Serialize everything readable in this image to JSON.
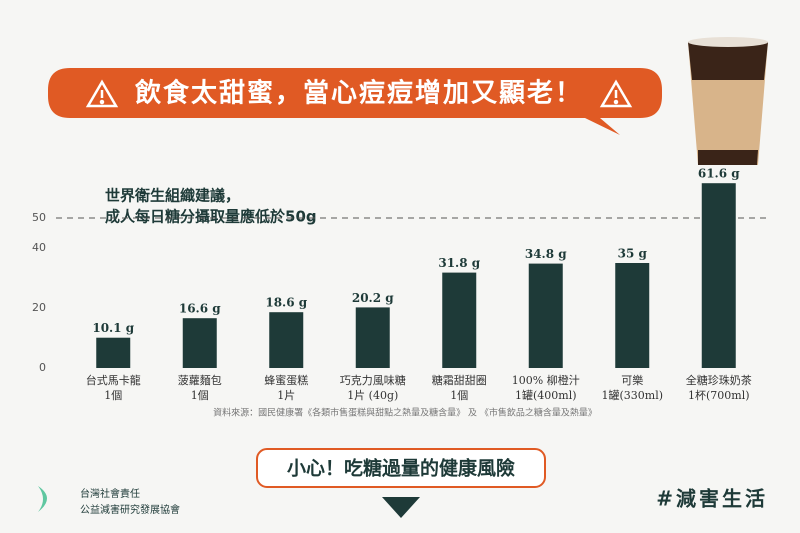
{
  "chart_data": {
    "type": "bar",
    "title": "飲食太甜蜜，當心痘痘增加又顯老！",
    "annotation": [
      "世界衛生組織建議，",
      "成人每日糖分攝取量應低於50g"
    ],
    "reference_line": 50,
    "categories": [
      "台式馬卡龍",
      "菠蘿麵包",
      "蜂蜜蛋糕",
      "巧克力風味糖",
      "糖霜甜甜圈",
      "100% 柳橙汁",
      "可樂",
      "全糖珍珠奶茶"
    ],
    "category_units": [
      "1個",
      "1個",
      "1片",
      "1片 (40g)",
      "1個",
      "1罐(400ml)",
      "1罐(330ml)",
      "1杯(700ml)"
    ],
    "values": [
      10.1,
      16.6,
      18.6,
      20.2,
      31.8,
      34.8,
      35,
      61.6
    ],
    "value_labels": [
      "10.1 g",
      "16.6 g",
      "18.6 g",
      "20.2 g",
      "31.8 g",
      "34.8 g",
      "35 g",
      "61.6 g"
    ],
    "color": "#1e3a38",
    "ylim": [
      0,
      65
    ],
    "yticks": [
      0,
      20,
      40,
      50
    ],
    "grid": false,
    "source": "資料來源：國民健康署《各類市售蛋糕與甜點之熱量及糖含量》 及 《市售飲品之糖含量及熱量》",
    "callout": "小心！吃糖過量的健康風險",
    "org": [
      "台灣社會責任",
      "公益減害研究發展協會"
    ],
    "hashtag": "#減害生活"
  }
}
